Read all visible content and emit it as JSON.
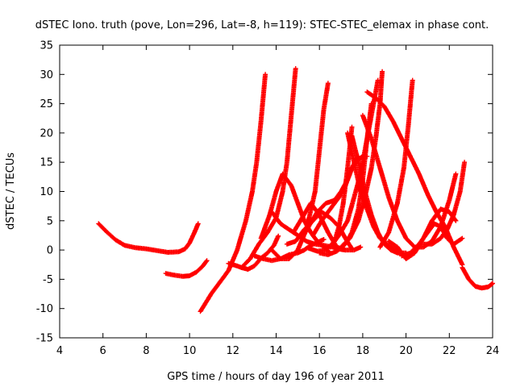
{
  "chart_data": {
    "type": "scatter",
    "title": "dSTEC Iono. truth (pove, Lon=296, Lat=-8, h=119): STEC-STEC_elemax in phase cont.",
    "xlabel": "GPS time / hours of day 196 of year 2011",
    "ylabel": "dSTEC  / TECUs",
    "xlim": [
      4,
      24
    ],
    "ylim": [
      -15,
      35
    ],
    "xticks": [
      4,
      6,
      8,
      10,
      12,
      14,
      16,
      18,
      20,
      22,
      24
    ],
    "yticks": [
      -15,
      -10,
      -5,
      0,
      5,
      10,
      15,
      20,
      25,
      30,
      35
    ],
    "grid": false,
    "legend": "none",
    "marker": "plus",
    "color": "#ff0000",
    "series": [
      {
        "x": [
          5.8,
          6.2,
          6.6,
          7.0,
          7.5,
          8.0,
          8.5,
          9.0,
          9.5,
          9.8,
          10.0,
          10.2,
          10.4
        ],
        "y": [
          4.5,
          3.0,
          1.7,
          0.8,
          0.4,
          0.2,
          -0.1,
          -0.4,
          -0.3,
          0.2,
          1.2,
          2.8,
          4.5
        ]
      },
      {
        "x": [
          8.9,
          9.3,
          9.7,
          10.0,
          10.3,
          10.6,
          10.8
        ],
        "y": [
          -4.0,
          -4.3,
          -4.5,
          -4.4,
          -3.8,
          -2.8,
          -1.8
        ]
      },
      {
        "x": [
          10.5,
          11.0,
          11.4,
          11.8,
          12.2,
          12.6,
          12.9,
          13.1,
          13.3,
          13.5
        ],
        "y": [
          -10.5,
          -7.5,
          -5.5,
          -3.5,
          0.0,
          5.0,
          10.0,
          15.0,
          22.0,
          30.0
        ]
      },
      {
        "x": [
          11.8,
          12.1,
          12.4,
          12.7,
          13.0,
          13.3,
          13.6,
          13.9,
          14.1
        ],
        "y": [
          -2.3,
          -2.6,
          -3.0,
          -3.3,
          -2.7,
          -1.4,
          -0.5,
          0.8,
          2.4
        ]
      },
      {
        "x": [
          12.4,
          12.8,
          13.2,
          13.6,
          14.0,
          14.3,
          14.5,
          14.7,
          14.9
        ],
        "y": [
          -3.0,
          -1.5,
          1.0,
          3.0,
          5.5,
          10.0,
          15.0,
          23.0,
          31.0
        ]
      },
      {
        "x": [
          13.0,
          13.4,
          13.8,
          14.2,
          14.6,
          15.0,
          15.3,
          15.6,
          15.9,
          16.2
        ],
        "y": [
          -1.0,
          -1.5,
          -1.8,
          -1.5,
          -0.8,
          -0.5,
          0.0,
          0.8,
          1.3,
          1.8
        ]
      },
      {
        "x": [
          13.3,
          13.7,
          14.0,
          14.3,
          14.7,
          15.0,
          15.3,
          15.6,
          15.9,
          16.2,
          16.5
        ],
        "y": [
          2.0,
          6.0,
          10.0,
          13.0,
          11.0,
          8.0,
          5.0,
          3.0,
          1.5,
          0.5,
          -0.5
        ]
      },
      {
        "x": [
          13.8,
          14.2,
          14.6,
          15.0,
          15.4,
          15.8,
          16.0,
          16.2,
          16.4
        ],
        "y": [
          0.0,
          -1.5,
          -1.5,
          0.0,
          3.5,
          10.0,
          17.0,
          24.0,
          28.5
        ]
      },
      {
        "x": [
          13.8,
          14.2,
          14.6,
          15.0,
          15.4,
          15.8,
          16.2,
          16.6,
          16.8,
          17.0,
          17.2
        ],
        "y": [
          6.5,
          4.5,
          3.5,
          2.5,
          1.5,
          1.0,
          0.8,
          0.5,
          0.3,
          0.1,
          0.0
        ]
      },
      {
        "x": [
          14.5,
          14.9,
          15.3,
          15.7,
          16.1,
          16.5,
          16.9,
          17.2,
          17.5
        ],
        "y": [
          1.0,
          1.5,
          3.5,
          5.0,
          6.5,
          5.5,
          4.0,
          2.0,
          0.2
        ]
      },
      {
        "x": [
          14.8,
          15.2,
          15.6,
          16.0,
          16.4,
          16.8,
          17.2,
          17.6,
          17.9
        ],
        "y": [
          3.0,
          5.5,
          8.0,
          6.0,
          3.0,
          0.5,
          0.0,
          0.0,
          0.5
        ]
      },
      {
        "x": [
          15.5,
          15.9,
          16.3,
          16.7,
          16.9,
          17.1,
          17.3,
          17.5
        ],
        "y": [
          0.3,
          -0.2,
          0.0,
          1.5,
          4.0,
          8.0,
          14.0,
          21.0
        ]
      },
      {
        "x": [
          15.5,
          15.9,
          16.3,
          16.7,
          17.0,
          17.3,
          17.5,
          17.7,
          17.8
        ],
        "y": [
          4.0,
          6.5,
          8.0,
          8.5,
          10.0,
          12.0,
          14.0,
          15.5,
          16.0
        ]
      },
      {
        "x": [
          15.7,
          16.1,
          16.5,
          16.9,
          17.2,
          17.5,
          17.8,
          18.0,
          18.2
        ],
        "y": [
          2.5,
          5.0,
          7.0,
          9.0,
          11.0,
          14.0,
          15.5,
          16.0,
          16.0
        ]
      },
      {
        "x": [
          16.0,
          16.4,
          16.8,
          17.2,
          17.5,
          17.8,
          18.0,
          18.2,
          18.4
        ],
        "y": [
          -0.5,
          -0.8,
          -0.2,
          1.0,
          3.0,
          7.0,
          12.0,
          19.0,
          25.0
        ]
      },
      {
        "x": [
          16.5,
          16.9,
          17.3,
          17.6,
          17.9,
          18.1,
          18.3,
          18.5,
          18.7
        ],
        "y": [
          0.5,
          2.5,
          5.0,
          9.0,
          13.0,
          17.0,
          21.0,
          25.0,
          29.0
        ]
      },
      {
        "x": [
          17.0,
          17.4,
          17.8,
          18.1,
          18.4,
          18.6,
          18.8,
          18.9
        ],
        "y": [
          0.5,
          2.0,
          5.0,
          9.0,
          14.0,
          19.0,
          25.0,
          30.5
        ]
      },
      {
        "x": [
          17.3,
          17.6,
          17.9,
          18.2,
          18.5,
          18.8,
          19.1,
          19.5,
          19.9
        ],
        "y": [
          20.0,
          15.0,
          10.0,
          7.0,
          4.0,
          2.0,
          1.0,
          0.0,
          -1.0
        ]
      },
      {
        "x": [
          17.5,
          17.8,
          18.1,
          18.4,
          18.7,
          19.0,
          19.3,
          19.6,
          20.0
        ],
        "y": [
          19.5,
          15.0,
          10.0,
          6.0,
          3.0,
          1.0,
          0.0,
          -0.5,
          -0.5
        ]
      },
      {
        "x": [
          18.0,
          18.4,
          18.8,
          19.2,
          19.6,
          20.0,
          20.4,
          20.8,
          21.2,
          21.6,
          22.0,
          22.3
        ],
        "y": [
          23.0,
          19.0,
          14.0,
          9.0,
          5.0,
          2.0,
          0.5,
          0.5,
          1.5,
          4.0,
          8.5,
          13.0
        ]
      },
      {
        "x": [
          18.2,
          18.6,
          19.0,
          19.4,
          19.8,
          20.2,
          20.6,
          21.0,
          21.4,
          21.8,
          22.2,
          22.6
        ],
        "y": [
          27.0,
          26.0,
          24.5,
          22.0,
          19.0,
          16.0,
          13.0,
          9.5,
          6.5,
          4.0,
          0.5,
          -2.5
        ]
      },
      {
        "x": [
          18.8,
          19.2,
          19.6,
          19.9,
          20.1,
          20.3
        ],
        "y": [
          0.5,
          3.0,
          8.0,
          14.0,
          21.0,
          29.0
        ]
      },
      {
        "x": [
          19.2,
          19.6,
          20.0,
          20.4,
          20.8,
          21.2,
          21.6,
          22.0,
          22.3
        ],
        "y": [
          1.5,
          0.5,
          -1.5,
          -0.5,
          2.0,
          5.0,
          7.0,
          6.5,
          5.0
        ]
      },
      {
        "x": [
          19.8,
          20.2,
          20.6,
          21.0,
          21.3,
          21.6,
          21.9,
          22.2,
          22.6
        ],
        "y": [
          -1.0,
          -0.5,
          1.0,
          3.0,
          4.5,
          4.0,
          2.0,
          1.0,
          2.0
        ]
      },
      {
        "x": [
          20.8,
          21.2,
          21.6,
          21.9,
          22.2,
          22.5,
          22.7
        ],
        "y": [
          1.0,
          1.0,
          2.0,
          3.5,
          6.0,
          10.0,
          15.0
        ]
      },
      {
        "x": [
          22.6,
          22.9,
          23.2,
          23.5,
          23.8,
          24.0
        ],
        "y": [
          -3.0,
          -5.0,
          -6.2,
          -6.5,
          -6.3,
          -5.7
        ]
      }
    ]
  }
}
